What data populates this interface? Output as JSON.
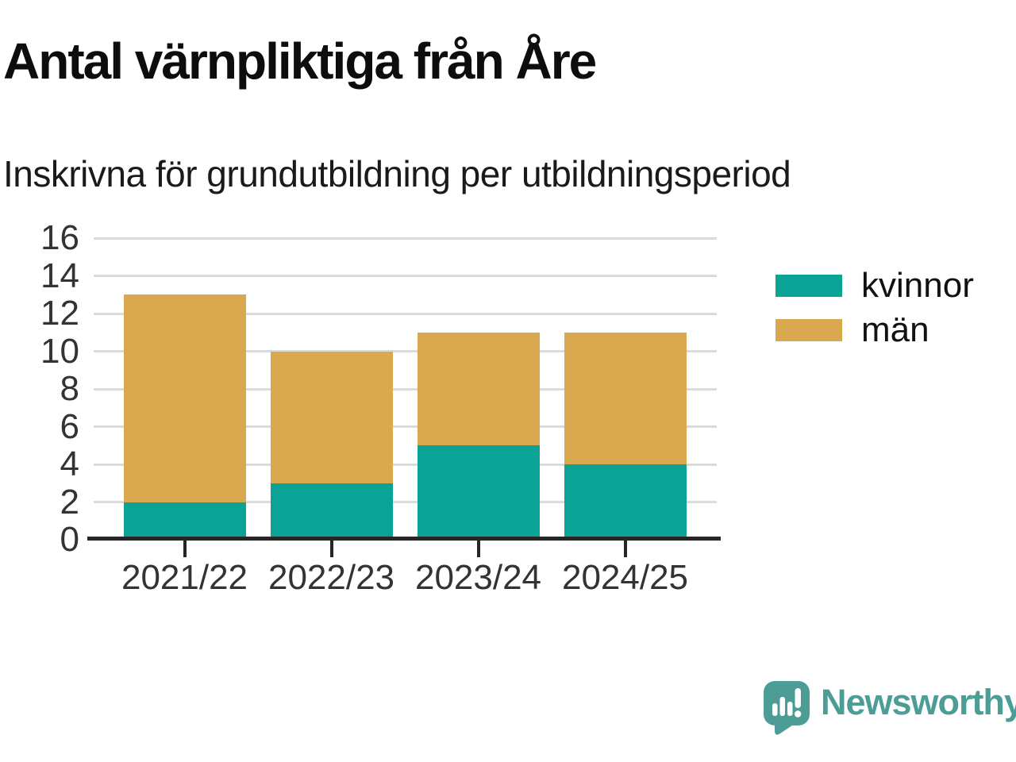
{
  "header": {
    "title": "Antal värnpliktiga från Åre",
    "subtitle": "Inskrivna för grundutbildning per utbildningsperiod"
  },
  "chart_data": {
    "type": "bar",
    "stacked": true,
    "title": "Antal värnpliktiga från Åre",
    "subtitle": "Inskrivna för grundutbildning per utbildningsperiod",
    "categories": [
      "2021/22",
      "2022/23",
      "2023/24",
      "2024/25"
    ],
    "series": [
      {
        "name": "kvinnor",
        "color": "#0AA396",
        "values": [
          2,
          3,
          5,
          4
        ]
      },
      {
        "name": "män",
        "color": "#D9A94F",
        "values": [
          11,
          7,
          6,
          7
        ]
      }
    ],
    "totals": [
      13,
      10,
      11,
      11
    ],
    "yticks": [
      0,
      2,
      4,
      6,
      8,
      10,
      12,
      14,
      16
    ],
    "ylim": [
      0,
      16
    ],
    "xlabel": "",
    "ylabel": "",
    "grid": "horizontal",
    "legend_position": "right"
  },
  "footer": {
    "brand": "Newsworthy"
  },
  "colors": {
    "grid": "#DBDBDB",
    "axis": "#262626",
    "tick_text": "#333333",
    "brand": "#4D9D97"
  }
}
